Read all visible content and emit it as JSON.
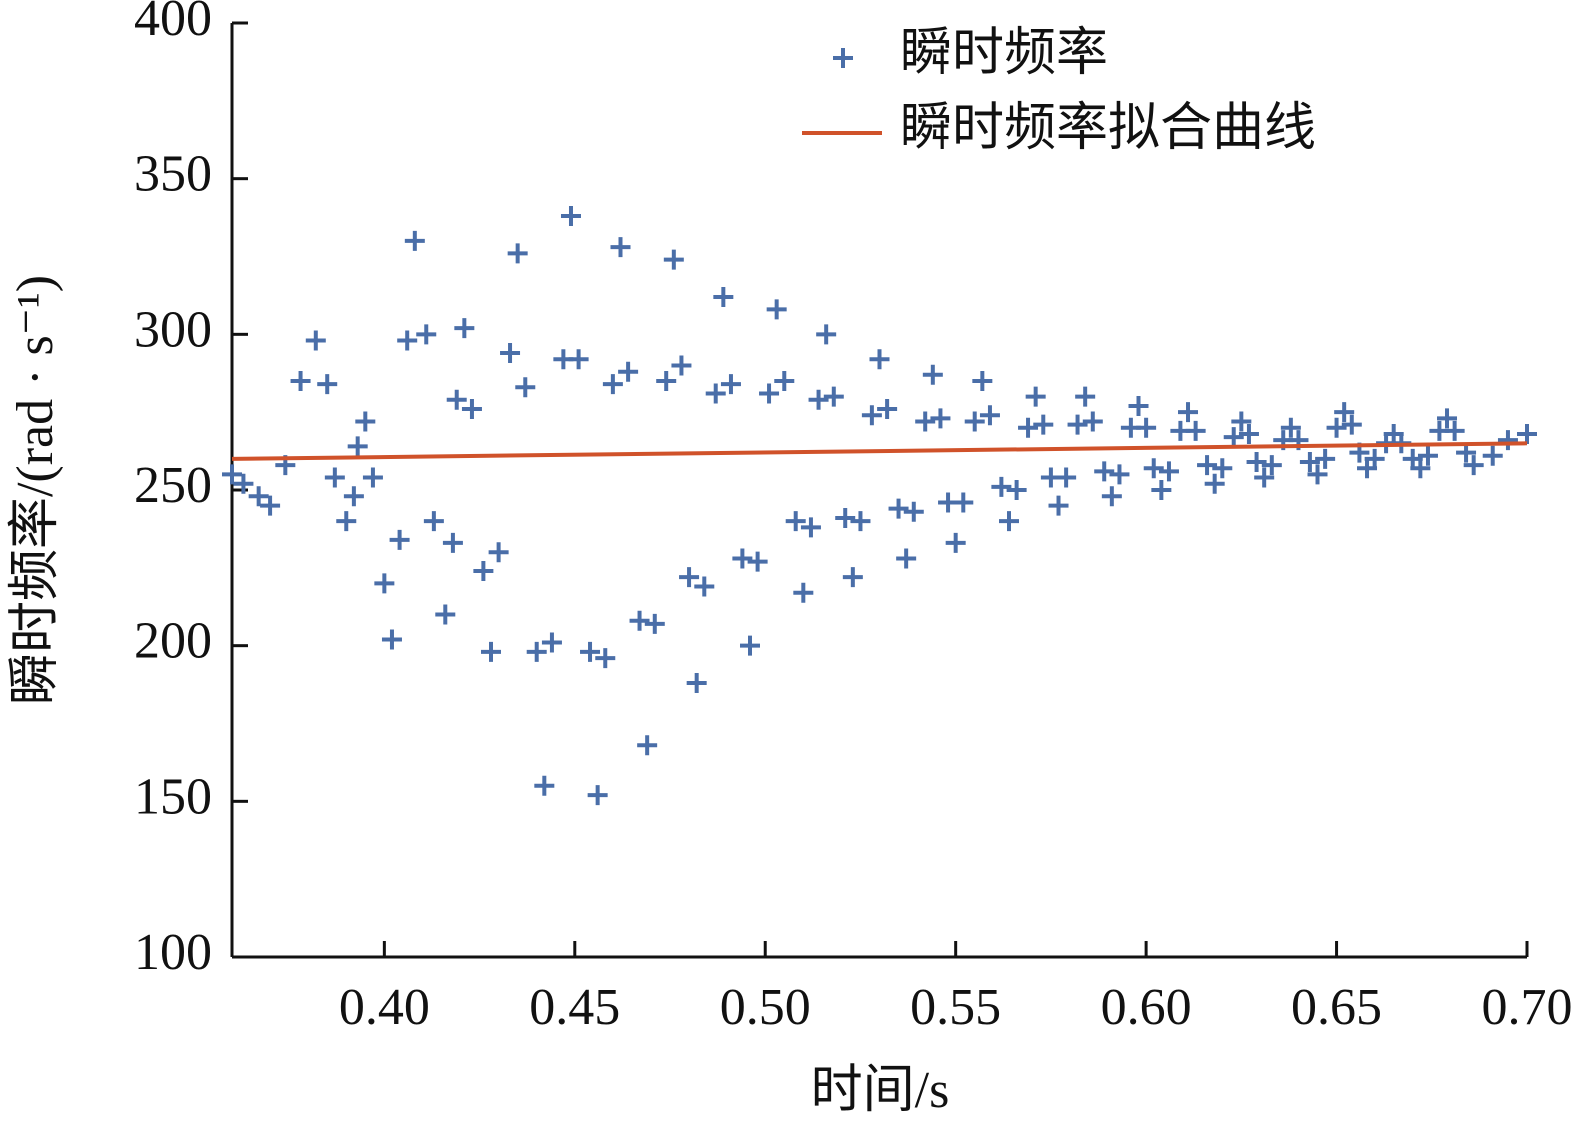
{
  "chart_data": {
    "type": "scatter",
    "xlabel": "时间/s",
    "ylabel": "瞬时频率/(rad · s⁻¹)",
    "xlim": [
      0.36,
      0.7
    ],
    "ylim": [
      100,
      400
    ],
    "xticks": [
      {
        "value": 0.4,
        "label": "0.40"
      },
      {
        "value": 0.45,
        "label": "0.45"
      },
      {
        "value": 0.5,
        "label": "0.50"
      },
      {
        "value": 0.55,
        "label": "0.55"
      },
      {
        "value": 0.6,
        "label": "0.60"
      },
      {
        "value": 0.65,
        "label": "0.65"
      },
      {
        "value": 0.7,
        "label": "0.70"
      }
    ],
    "yticks": [
      100,
      150,
      200,
      250,
      300,
      350,
      400
    ],
    "legend": "upper right",
    "series": [
      {
        "name": "瞬时频率",
        "type": "scatter",
        "color": "#4a6ea8",
        "x": [
          0.36,
          0.363,
          0.367,
          0.37,
          0.374,
          0.378,
          0.382,
          0.385,
          0.387,
          0.39,
          0.392,
          0.393,
          0.395,
          0.397,
          0.4,
          0.402,
          0.404,
          0.406,
          0.408,
          0.411,
          0.413,
          0.416,
          0.418,
          0.419,
          0.421,
          0.423,
          0.426,
          0.428,
          0.43,
          0.433,
          0.435,
          0.437,
          0.44,
          0.442,
          0.444,
          0.447,
          0.449,
          0.451,
          0.454,
          0.456,
          0.458,
          0.46,
          0.462,
          0.464,
          0.467,
          0.469,
          0.471,
          0.474,
          0.476,
          0.478,
          0.48,
          0.482,
          0.484,
          0.487,
          0.489,
          0.491,
          0.494,
          0.496,
          0.498,
          0.501,
          0.503,
          0.505,
          0.508,
          0.51,
          0.512,
          0.514,
          0.516,
          0.518,
          0.521,
          0.523,
          0.525,
          0.528,
          0.53,
          0.532,
          0.535,
          0.537,
          0.539,
          0.542,
          0.544,
          0.546,
          0.548,
          0.55,
          0.552,
          0.555,
          0.557,
          0.559,
          0.562,
          0.564,
          0.566,
          0.569,
          0.571,
          0.573,
          0.575,
          0.577,
          0.579,
          0.582,
          0.584,
          0.586,
          0.589,
          0.591,
          0.593,
          0.596,
          0.598,
          0.6,
          0.602,
          0.604,
          0.606,
          0.609,
          0.611,
          0.613,
          0.616,
          0.618,
          0.62,
          0.623,
          0.625,
          0.627,
          0.629,
          0.631,
          0.633,
          0.636,
          0.638,
          0.64,
          0.643,
          0.645,
          0.647,
          0.65,
          0.652,
          0.654,
          0.656,
          0.658,
          0.66,
          0.663,
          0.665,
          0.667,
          0.67,
          0.672,
          0.674,
          0.677,
          0.679,
          0.681,
          0.684,
          0.686,
          0.691,
          0.695,
          0.7
        ],
        "values": [
          255,
          252,
          248,
          245,
          258,
          285,
          298,
          284,
          254,
          240,
          248,
          264,
          272,
          254,
          220,
          202,
          234,
          298,
          330,
          300,
          240,
          210,
          233,
          279,
          302,
          276,
          224,
          198,
          230,
          294,
          326,
          283,
          198,
          155,
          201,
          292,
          338,
          292,
          198,
          152,
          196,
          284,
          328,
          288,
          208,
          168,
          207,
          285,
          324,
          290,
          222,
          188,
          219,
          281,
          312,
          284,
          228,
          200,
          227,
          281,
          308,
          285,
          240,
          217,
          238,
          279,
          300,
          280,
          241,
          222,
          240,
          274,
          292,
          276,
          244,
          228,
          243,
          272,
          287,
          273,
          246,
          233,
          246,
          272,
          285,
          274,
          251,
          240,
          250,
          270,
          280,
          271,
          254,
          245,
          254,
          271,
          280,
          272,
          256,
          248,
          255,
          270,
          277,
          270,
          257,
          250,
          256,
          269,
          275,
          269,
          258,
          252,
          257,
          267,
          272,
          268,
          259,
          254,
          258,
          266,
          270,
          266,
          259,
          255,
          260,
          270,
          275,
          271,
          262,
          257,
          260,
          265,
          268,
          265,
          260,
          257,
          261,
          269,
          273,
          269,
          262,
          258,
          261,
          266,
          268
        ]
      },
      {
        "name": "瞬时频率拟合曲线",
        "type": "line",
        "color": "#d0522a",
        "x": [
          0.36,
          0.7
        ],
        "values": [
          260,
          265
        ]
      }
    ]
  }
}
